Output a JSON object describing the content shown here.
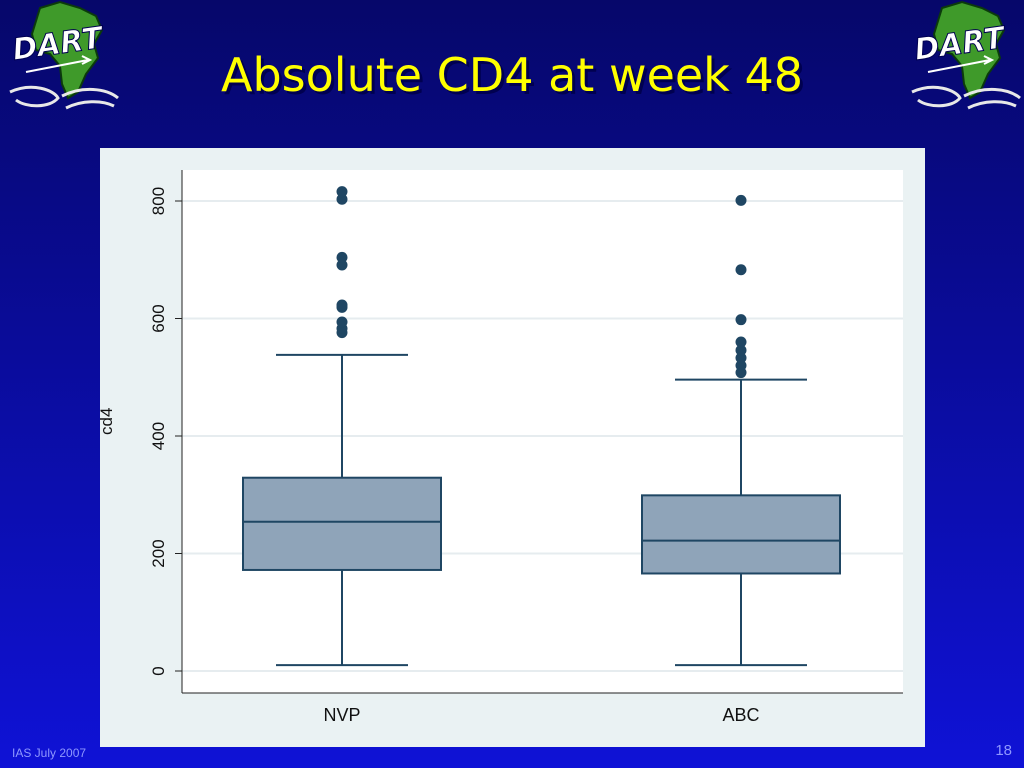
{
  "slide": {
    "title": "Absolute CD4 at week 48",
    "footer": "IAS July 2007",
    "page_number": "18",
    "logo_text": "DART"
  },
  "colors": {
    "title": "#ffff00",
    "box_fill": "#8fa4b9",
    "box_stroke": "#1f4663",
    "outlier": "#1f4663",
    "footer": "#8f98ff"
  },
  "chart_data": {
    "type": "box",
    "title": "",
    "xlabel": "",
    "ylabel": "cd4",
    "ylim": [
      0,
      850
    ],
    "yticks": [
      0,
      200,
      400,
      600,
      800
    ],
    "grid": true,
    "categories": [
      "NVP",
      "ABC"
    ],
    "boxes": [
      {
        "category": "NVP",
        "whisker_low": 10,
        "q1": 172,
        "median": 254,
        "q3": 329,
        "whisker_high": 538,
        "outliers": [
          576,
          583,
          594,
          619,
          623,
          691,
          704,
          803,
          816
        ]
      },
      {
        "category": "ABC",
        "whisker_low": 10,
        "q1": 166,
        "median": 222,
        "q3": 299,
        "whisker_high": 496,
        "outliers": [
          508,
          520,
          533,
          546,
          560,
          598,
          683,
          801
        ]
      }
    ]
  }
}
